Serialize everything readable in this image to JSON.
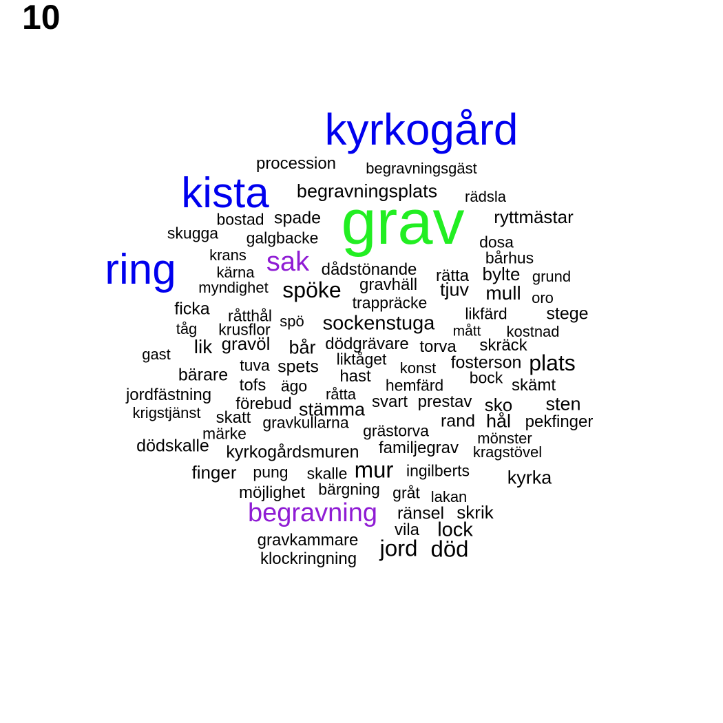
{
  "panel_number": "10",
  "palette": {
    "green": "#22ee22",
    "blue": "#0000ee",
    "purple": "#8f1cd4",
    "black": "#000000"
  },
  "words": [
    {
      "text": "grav",
      "color": "green"
    },
    {
      "text": "kyrkogård",
      "color": "blue"
    },
    {
      "text": "kista",
      "color": "blue"
    },
    {
      "text": "ring",
      "color": "blue"
    },
    {
      "text": "sak",
      "color": "purple"
    },
    {
      "text": "begravning",
      "color": "purple"
    },
    {
      "text": "procession",
      "color": "black"
    },
    {
      "text": "begravningsgäst",
      "color": "black"
    },
    {
      "text": "begravningsplats",
      "color": "black"
    },
    {
      "text": "rädsla",
      "color": "black"
    },
    {
      "text": "ryttmästar",
      "color": "black"
    },
    {
      "text": "bostad",
      "color": "black"
    },
    {
      "text": "spade",
      "color": "black"
    },
    {
      "text": "skugga",
      "color": "black"
    },
    {
      "text": "galgbacke",
      "color": "black"
    },
    {
      "text": "dosa",
      "color": "black"
    },
    {
      "text": "bårhus",
      "color": "black"
    },
    {
      "text": "krans",
      "color": "black"
    },
    {
      "text": "kärna",
      "color": "black"
    },
    {
      "text": "dådstönande",
      "color": "black"
    },
    {
      "text": "rätta",
      "color": "black"
    },
    {
      "text": "bylte",
      "color": "black"
    },
    {
      "text": "grund",
      "color": "black"
    },
    {
      "text": "myndighet",
      "color": "black"
    },
    {
      "text": "spöke",
      "color": "black"
    },
    {
      "text": "gravhäll",
      "color": "black"
    },
    {
      "text": "tjuv",
      "color": "black"
    },
    {
      "text": "mull",
      "color": "black"
    },
    {
      "text": "oro",
      "color": "black"
    },
    {
      "text": "trappräcke",
      "color": "black"
    },
    {
      "text": "ficka",
      "color": "black"
    },
    {
      "text": "råtthål",
      "color": "black"
    },
    {
      "text": "likfärd",
      "color": "black"
    },
    {
      "text": "stege",
      "color": "black"
    },
    {
      "text": "tåg",
      "color": "black"
    },
    {
      "text": "krusflor",
      "color": "black"
    },
    {
      "text": "spö",
      "color": "black"
    },
    {
      "text": "sockenstuga",
      "color": "black"
    },
    {
      "text": "mått",
      "color": "black"
    },
    {
      "text": "kostnad",
      "color": "black"
    },
    {
      "text": "lik",
      "color": "black"
    },
    {
      "text": "gravöl",
      "color": "black"
    },
    {
      "text": "bår",
      "color": "black"
    },
    {
      "text": "dödgrävare",
      "color": "black"
    },
    {
      "text": "torva",
      "color": "black"
    },
    {
      "text": "skräck",
      "color": "black"
    },
    {
      "text": "gast",
      "color": "black"
    },
    {
      "text": "tuva",
      "color": "black"
    },
    {
      "text": "spets",
      "color": "black"
    },
    {
      "text": "liktåget",
      "color": "black"
    },
    {
      "text": "konst",
      "color": "black"
    },
    {
      "text": "fosterson",
      "color": "black"
    },
    {
      "text": "plats",
      "color": "black"
    },
    {
      "text": "bärare",
      "color": "black"
    },
    {
      "text": "hast",
      "color": "black"
    },
    {
      "text": "bock",
      "color": "black"
    },
    {
      "text": "tofs",
      "color": "black"
    },
    {
      "text": "ägo",
      "color": "black"
    },
    {
      "text": "hemfärd",
      "color": "black"
    },
    {
      "text": "skämt",
      "color": "black"
    },
    {
      "text": "jordfästning",
      "color": "black"
    },
    {
      "text": "råtta",
      "color": "black"
    },
    {
      "text": "förebud",
      "color": "black"
    },
    {
      "text": "svart",
      "color": "black"
    },
    {
      "text": "prestav",
      "color": "black"
    },
    {
      "text": "sko",
      "color": "black"
    },
    {
      "text": "sten",
      "color": "black"
    },
    {
      "text": "krigstjänst",
      "color": "black"
    },
    {
      "text": "stämma",
      "color": "black"
    },
    {
      "text": "skatt",
      "color": "black"
    },
    {
      "text": "gravkullarna",
      "color": "black"
    },
    {
      "text": "rand",
      "color": "black"
    },
    {
      "text": "hål",
      "color": "black"
    },
    {
      "text": "pekfinger",
      "color": "black"
    },
    {
      "text": "märke",
      "color": "black"
    },
    {
      "text": "grästorva",
      "color": "black"
    },
    {
      "text": "mönster",
      "color": "black"
    },
    {
      "text": "dödskalle",
      "color": "black"
    },
    {
      "text": "kyrkogårdsmuren",
      "color": "black"
    },
    {
      "text": "familjegrav",
      "color": "black"
    },
    {
      "text": "kragstövel",
      "color": "black"
    },
    {
      "text": "finger",
      "color": "black"
    },
    {
      "text": "pung",
      "color": "black"
    },
    {
      "text": "skalle",
      "color": "black"
    },
    {
      "text": "mur",
      "color": "black"
    },
    {
      "text": "ingilberts",
      "color": "black"
    },
    {
      "text": "kyrka",
      "color": "black"
    },
    {
      "text": "möjlighet",
      "color": "black"
    },
    {
      "text": "bärgning",
      "color": "black"
    },
    {
      "text": "gråt",
      "color": "black"
    },
    {
      "text": "lakan",
      "color": "black"
    },
    {
      "text": "ränsel",
      "color": "black"
    },
    {
      "text": "skrik",
      "color": "black"
    },
    {
      "text": "vila",
      "color": "black"
    },
    {
      "text": "lock",
      "color": "black"
    },
    {
      "text": "gravkammare",
      "color": "black"
    },
    {
      "text": "jord",
      "color": "black"
    },
    {
      "text": "död",
      "color": "black"
    },
    {
      "text": "klockringning",
      "color": "black"
    }
  ]
}
